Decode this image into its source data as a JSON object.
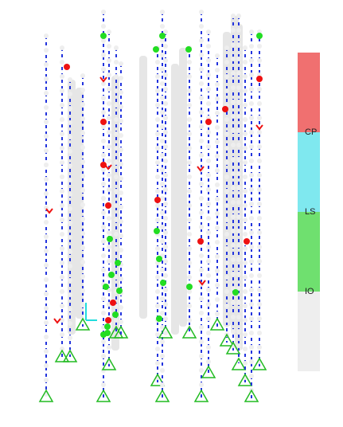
{
  "legend": {
    "levels": [
      {
        "name": "",
        "color": "#f07070"
      },
      {
        "name": "CP",
        "color": "#7fe8ef"
      },
      {
        "name": "LS",
        "color": "#6fe06f"
      },
      {
        "name": "IO",
        "color": "#eeeeee"
      }
    ],
    "labels": {
      "cp": "CP",
      "ls": "LS",
      "io": "IO"
    }
  },
  "model": {
    "hinge_colors": {
      "io": "#eeeeee",
      "ls": "#22dd22",
      "cp": "#ee1111"
    },
    "member_color": "#2233dd",
    "support_color": "#22bb22",
    "axis_color": "#22dddd"
  }
}
